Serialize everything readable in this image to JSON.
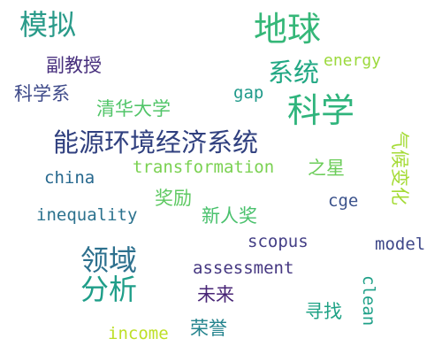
{
  "words": [
    {
      "id": "moni",
      "text": "模拟",
      "color": "#2a9b8a"
    },
    {
      "id": "diqiu",
      "text": "地球",
      "color": "#35b778"
    },
    {
      "id": "energy",
      "text": "energy",
      "color": "#9bd93c"
    },
    {
      "id": "fujiaoshou",
      "text": "副教授",
      "color": "#472f7d"
    },
    {
      "id": "xitong",
      "text": "系统",
      "color": "#22a884"
    },
    {
      "id": "kexuexi",
      "text": "科学系",
      "color": "#3e4a89"
    },
    {
      "id": "gap",
      "text": "gap",
      "color": "#1f9a8a"
    },
    {
      "id": "kexue",
      "text": "科学",
      "color": "#2fb47c"
    },
    {
      "id": "qinghua",
      "text": "清华大学",
      "color": "#52c569"
    },
    {
      "id": "nengyuan",
      "text": "能源环境经济系统",
      "color": "#30407f"
    },
    {
      "id": "qihou",
      "text": "气候变化",
      "color": "#a5db36"
    },
    {
      "id": "transformation",
      "text": "transformation",
      "color": "#7ad151"
    },
    {
      "id": "zhixing",
      "text": "之星",
      "color": "#6ccd5a"
    },
    {
      "id": "china",
      "text": "china",
      "color": "#26688e"
    },
    {
      "id": "jiangli",
      "text": "奖励",
      "color": "#5ec962"
    },
    {
      "id": "cge",
      "text": "cge",
      "color": "#3b528b"
    },
    {
      "id": "inequality",
      "text": "inequality",
      "color": "#2c728e"
    },
    {
      "id": "xinrenjiang",
      "text": "新人奖",
      "color": "#4ac16d"
    },
    {
      "id": "scopus",
      "text": "scopus",
      "color": "#433e85"
    },
    {
      "id": "model",
      "text": "model",
      "color": "#3f4889"
    },
    {
      "id": "lingyu",
      "text": "领域",
      "color": "#2d708e"
    },
    {
      "id": "assessment",
      "text": "assessment",
      "color": "#453781"
    },
    {
      "id": "fenxi",
      "text": "分析",
      "color": "#1f9e89"
    },
    {
      "id": "weilai",
      "text": "未来",
      "color": "#482576"
    },
    {
      "id": "clean",
      "text": "clean",
      "color": "#1fa088"
    },
    {
      "id": "xunzhao",
      "text": "寻找",
      "color": "#20a386"
    },
    {
      "id": "income",
      "text": "income",
      "color": "#bddf26"
    },
    {
      "id": "rongyu",
      "text": "荣誉",
      "color": "#25848e"
    }
  ]
}
